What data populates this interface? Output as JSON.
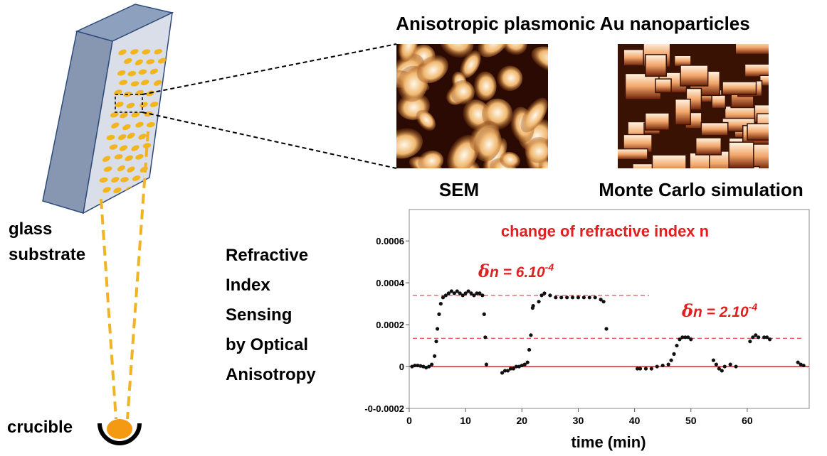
{
  "labels": {
    "title": "Anisotropic plasmonic Au nanoparticles",
    "sem": "SEM",
    "monte_carlo": "Monte Carlo simulation",
    "substrate": [
      "glass",
      "substrate"
    ],
    "crucible": "crucible",
    "sensing": [
      "Refractive",
      "Index",
      "Sensing",
      "by Optical",
      "Anisotropy"
    ]
  },
  "chart_data": {
    "type": "scatter",
    "title": "change of refractive index n",
    "x_label": "time (min)",
    "xlim": [
      0,
      71
    ],
    "xticks": [
      0,
      10,
      20,
      30,
      40,
      50,
      60
    ],
    "ylim": [
      -0.0002,
      0.00075
    ],
    "yticks": [
      {
        "value": -0.0002,
        "label": "-0-0.0002"
      },
      0,
      0.0002,
      0.0004,
      0.0006
    ],
    "reference_lines": [
      {
        "value": 0,
        "style": "solid",
        "color": "#e02020"
      },
      {
        "value": 0.00034,
        "style": "dashed",
        "color": "#e02020"
      },
      {
        "value": 0.000135,
        "style": "dashed",
        "color": "#e02020"
      }
    ],
    "annotations": [
      {
        "symbol": "δ",
        "text": "n = 6.10",
        "exponent": "-4",
        "color": "#e02020"
      },
      {
        "symbol": "δ",
        "text": "n = 2.10",
        "exponent": "-4",
        "color": "#e02020"
      }
    ],
    "series": [
      {
        "color": "#111111",
        "x": [
          0.5,
          1,
          1.5,
          2,
          2.5,
          3,
          3.5,
          4,
          4.5,
          4.8,
          5,
          5.3,
          5.6,
          6,
          6.5,
          7,
          7.5,
          8,
          8.5,
          9,
          9.5,
          10,
          10.5,
          11,
          11.5,
          12,
          12.5,
          13,
          13.3,
          13.5,
          13.7,
          16.5,
          17,
          17.5,
          18,
          18.5,
          19,
          19.5,
          20,
          20.5,
          21,
          21.3,
          21.6,
          21.9,
          22,
          23,
          23.5,
          24,
          25,
          26,
          27,
          28,
          29,
          30,
          31,
          32,
          33,
          34,
          34.5,
          35,
          40.5,
          41,
          42,
          43,
          44,
          45,
          46,
          46.5,
          47,
          47.5,
          48,
          48.5,
          49,
          49.5,
          50,
          54,
          54.5,
          55,
          55.5,
          56,
          57,
          58,
          60.5,
          61,
          61.5,
          62,
          63,
          63.5,
          64,
          69,
          69.5,
          70
        ],
        "values": [
          0,
          5e-06,
          5e-06,
          3e-06,
          0,
          -5e-06,
          0,
          1e-05,
          5e-05,
          0.00012,
          0.00018,
          0.00025,
          0.0003,
          0.00033,
          0.00034,
          0.00035,
          0.00036,
          0.00035,
          0.00036,
          0.00035,
          0.00034,
          0.00035,
          0.00036,
          0.00035,
          0.00034,
          0.00035,
          0.00035,
          0.00034,
          0.00025,
          0.00014,
          1e-05,
          -3e-05,
          -2e-05,
          -2e-05,
          -1e-05,
          -1e-05,
          0,
          0,
          5e-06,
          1e-05,
          2e-05,
          8e-05,
          0.00015,
          0.00028,
          0.00029,
          0.00031,
          0.00034,
          0.00035,
          0.00034,
          0.00033,
          0.00033,
          0.00033,
          0.00033,
          0.00033,
          0.00033,
          0.00033,
          0.00033,
          0.00032,
          0.00031,
          0.00018,
          -1e-05,
          -1e-05,
          -1e-05,
          -1e-05,
          0,
          5e-06,
          1e-05,
          3e-05,
          6e-05,
          0.0001,
          0.00013,
          0.00014,
          0.00014,
          0.00014,
          0.00013,
          3e-05,
          1e-05,
          -1e-05,
          -2e-05,
          0,
          1e-05,
          0,
          0.00012,
          0.00014,
          0.00015,
          0.00014,
          0.00014,
          0.00014,
          0.00013,
          2e-05,
          1e-05,
          5e-06
        ]
      }
    ]
  }
}
